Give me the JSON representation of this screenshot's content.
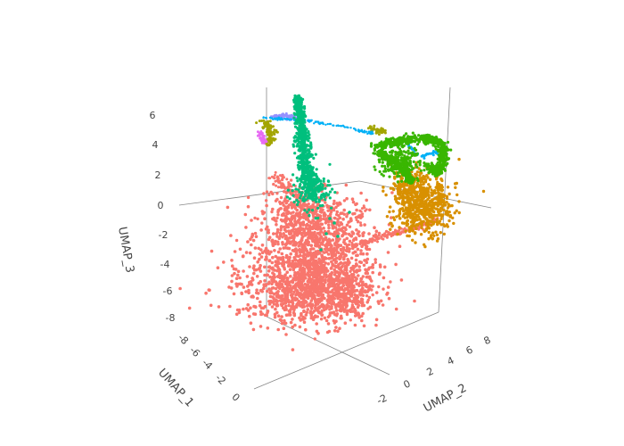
{
  "chart_data": {
    "type": "scatter",
    "projection": "3d",
    "title": "",
    "axes": {
      "x": {
        "label": "UMAP_1",
        "ticks": [
          "-8",
          "-6",
          "-4",
          "-2",
          "0"
        ],
        "range": [
          -9,
          1
        ]
      },
      "y": {
        "label": "UMAP_2",
        "ticks": [
          "-2",
          "0",
          "2",
          "4",
          "6",
          "8"
        ],
        "range": [
          -3,
          9
        ]
      },
      "z": {
        "label": "UMAP_3",
        "ticks": [
          "6",
          "4",
          "2",
          "0",
          "-2",
          "-4",
          "-6",
          "-8"
        ],
        "range": [
          -9,
          7
        ]
      }
    },
    "grid": false,
    "legend": "none",
    "series": [
      {
        "color": "#F8766D",
        "approx_center": {
          "UMAP_1": -4,
          "UMAP_2": 0,
          "UMAP_3": -5
        }
      },
      {
        "color": "#00BF7D",
        "approx_center": {
          "UMAP_1": -6,
          "UMAP_2": 0,
          "UMAP_3": 3
        }
      },
      {
        "color": "#39B600",
        "approx_center": {
          "UMAP_1": -3,
          "UMAP_2": 6,
          "UMAP_3": 4
        }
      },
      {
        "color": "#D89000",
        "approx_center": {
          "UMAP_1": -2,
          "UMAP_2": 6,
          "UMAP_3": 1
        }
      },
      {
        "color": "#A3A500",
        "approx_center": {
          "UMAP_1": -8,
          "UMAP_2": -1,
          "UMAP_3": 5
        }
      },
      {
        "color": "#9590FF",
        "approx_center": {
          "UMAP_1": -8,
          "UMAP_2": 1,
          "UMAP_3": 6
        }
      },
      {
        "color": "#00B0F6",
        "approx_center": {
          "UMAP_1": -6,
          "UMAP_2": 4,
          "UMAP_3": 5
        }
      },
      {
        "color": "#E76BF3",
        "approx_center": {
          "UMAP_1": -8,
          "UMAP_2": -2,
          "UMAP_3": 5
        }
      }
    ]
  }
}
